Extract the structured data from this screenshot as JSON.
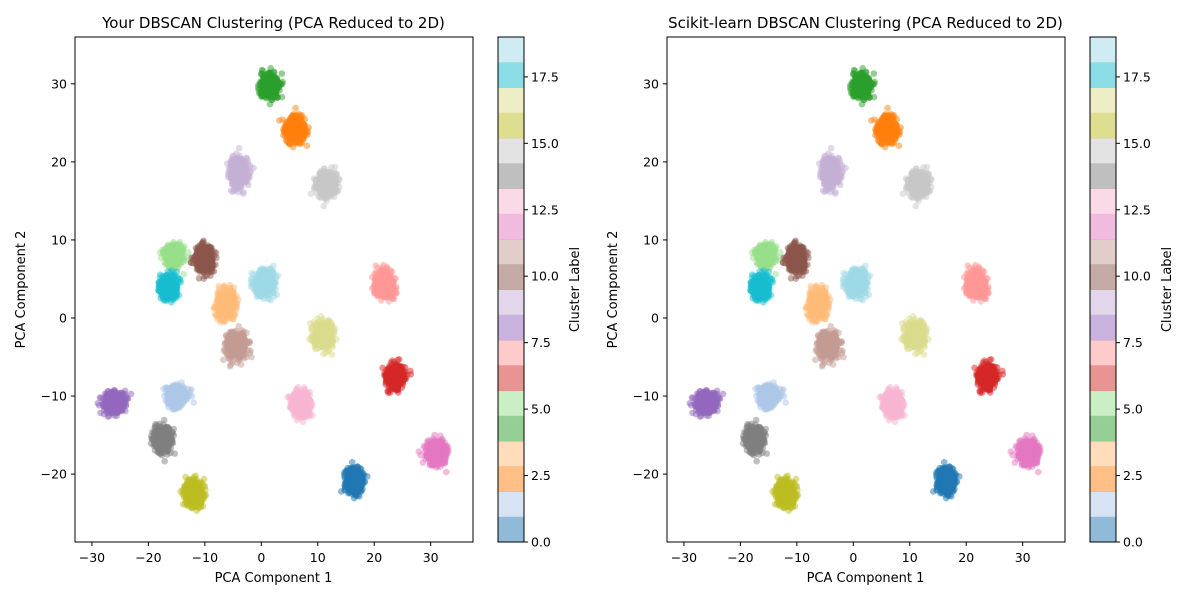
{
  "figure": {
    "width": 1200,
    "height": 600
  },
  "chart_data": [
    {
      "type": "scatter",
      "title": "Your DBSCAN Clustering (PCA Reduced to 2D)",
      "xlabel": "PCA Component 1",
      "ylabel": "PCA Component 2",
      "xlim": [
        -33,
        37.5
      ],
      "ylim": [
        -28.7,
        36
      ],
      "xticks": [
        -30,
        -20,
        -10,
        0,
        10,
        20,
        30
      ],
      "yticks": [
        -20,
        -10,
        0,
        10,
        20,
        30
      ],
      "xtick_labels": [
        "−30",
        "−20",
        "−10",
        "0",
        "10",
        "20",
        "30"
      ],
      "ytick_labels": [
        "−20",
        "−10",
        "0",
        "10",
        "20",
        "30"
      ],
      "colorbar": {
        "label": "Cluster Label",
        "range": [
          0,
          19
        ],
        "ticks": [
          0.0,
          2.5,
          5.0,
          7.5,
          10.0,
          12.5,
          15.0,
          17.5
        ],
        "tick_labels": [
          "0.0",
          "2.5",
          "5.0",
          "7.5",
          "10.0",
          "12.5",
          "15.0",
          "17.5"
        ],
        "colormap": "tab20",
        "colors": [
          "#1f77b4",
          "#aec7e8",
          "#ff7f0e",
          "#ffbb78",
          "#2ca02c",
          "#98df8a",
          "#d62728",
          "#ff9896",
          "#9467bd",
          "#c5b0d5",
          "#8c564b",
          "#c49c94",
          "#e377c2",
          "#f7b6d2",
          "#7f7f7f",
          "#c7c7c7",
          "#bcbd22",
          "#dbdb8d",
          "#17becf",
          "#9edae5"
        ]
      },
      "clusters": [
        {
          "label": 0,
          "center": [
            16.5,
            -20.8
          ],
          "spread": [
            1.3,
            1.4
          ]
        },
        {
          "label": 1,
          "center": [
            -15.0,
            -10.0
          ],
          "spread": [
            1.5,
            1.2
          ]
        },
        {
          "label": 2,
          "center": [
            6.0,
            24.2
          ],
          "spread": [
            1.5,
            1.5
          ]
        },
        {
          "label": 3,
          "center": [
            -6.2,
            1.8
          ],
          "spread": [
            1.4,
            1.6
          ]
        },
        {
          "label": 4,
          "center": [
            1.5,
            29.8
          ],
          "spread": [
            1.4,
            1.4
          ]
        },
        {
          "label": 5,
          "center": [
            -15.5,
            8.0
          ],
          "spread": [
            1.4,
            1.2
          ]
        },
        {
          "label": 6,
          "center": [
            23.7,
            -7.5
          ],
          "spread": [
            1.4,
            1.3
          ]
        },
        {
          "label": 7,
          "center": [
            21.8,
            4.3
          ],
          "spread": [
            1.5,
            1.5
          ]
        },
        {
          "label": 8,
          "center": [
            -26.0,
            -10.8
          ],
          "spread": [
            1.7,
            1.2
          ]
        },
        {
          "label": 9,
          "center": [
            -4.0,
            18.6
          ],
          "spread": [
            1.4,
            1.6
          ]
        },
        {
          "label": 10,
          "center": [
            -10.0,
            7.5
          ],
          "spread": [
            1.4,
            1.4
          ]
        },
        {
          "label": 11,
          "center": [
            -4.5,
            -3.6
          ],
          "spread": [
            1.5,
            1.4
          ]
        },
        {
          "label": 12,
          "center": [
            31.0,
            -17.2
          ],
          "spread": [
            1.5,
            1.4
          ]
        },
        {
          "label": 13,
          "center": [
            7.0,
            -11.0
          ],
          "spread": [
            1.4,
            1.4
          ]
        },
        {
          "label": 14,
          "center": [
            -17.5,
            -15.5
          ],
          "spread": [
            1.4,
            1.4
          ]
        },
        {
          "label": 15,
          "center": [
            11.5,
            17.2
          ],
          "spread": [
            1.5,
            1.5
          ]
        },
        {
          "label": 16,
          "center": [
            -12.0,
            -22.5
          ],
          "spread": [
            1.4,
            1.4
          ]
        },
        {
          "label": 17,
          "center": [
            11.0,
            -2.2
          ],
          "spread": [
            1.5,
            1.5
          ]
        },
        {
          "label": 18,
          "center": [
            -16.5,
            4.0
          ],
          "spread": [
            1.4,
            1.2
          ]
        },
        {
          "label": 19,
          "center": [
            0.5,
            4.5
          ],
          "spread": [
            1.5,
            1.5
          ]
        }
      ]
    },
    {
      "type": "scatter",
      "title": "Scikit-learn DBSCAN Clustering (PCA Reduced to 2D)",
      "xlabel": "PCA Component 1",
      "ylabel": "PCA Component 2",
      "xlim": [
        -33,
        37.5
      ],
      "ylim": [
        -28.7,
        36
      ],
      "xticks": [
        -30,
        -20,
        -10,
        0,
        10,
        20,
        30
      ],
      "yticks": [
        -20,
        -10,
        0,
        10,
        20,
        30
      ],
      "xtick_labels": [
        "−30",
        "−20",
        "−10",
        "0",
        "10",
        "20",
        "30"
      ],
      "ytick_labels": [
        "−20",
        "−10",
        "0",
        "10",
        "20",
        "30"
      ],
      "colorbar": {
        "label": "Cluster Label",
        "range": [
          0,
          19
        ],
        "ticks": [
          0.0,
          2.5,
          5.0,
          7.5,
          10.0,
          12.5,
          15.0,
          17.5
        ],
        "tick_labels": [
          "0.0",
          "2.5",
          "5.0",
          "7.5",
          "10.0",
          "12.5",
          "15.0",
          "17.5"
        ],
        "colormap": "tab20",
        "colors": [
          "#1f77b4",
          "#aec7e8",
          "#ff7f0e",
          "#ffbb78",
          "#2ca02c",
          "#98df8a",
          "#d62728",
          "#ff9896",
          "#9467bd",
          "#c5b0d5",
          "#8c564b",
          "#c49c94",
          "#e377c2",
          "#f7b6d2",
          "#7f7f7f",
          "#c7c7c7",
          "#bcbd22",
          "#dbdb8d",
          "#17becf",
          "#9edae5"
        ]
      },
      "clusters": [
        {
          "label": 0,
          "center": [
            16.5,
            -20.8
          ],
          "spread": [
            1.3,
            1.4
          ]
        },
        {
          "label": 1,
          "center": [
            -15.0,
            -10.0
          ],
          "spread": [
            1.5,
            1.2
          ]
        },
        {
          "label": 2,
          "center": [
            6.0,
            24.2
          ],
          "spread": [
            1.5,
            1.5
          ]
        },
        {
          "label": 3,
          "center": [
            -6.2,
            1.8
          ],
          "spread": [
            1.4,
            1.6
          ]
        },
        {
          "label": 4,
          "center": [
            1.5,
            29.8
          ],
          "spread": [
            1.4,
            1.4
          ]
        },
        {
          "label": 5,
          "center": [
            -15.5,
            8.0
          ],
          "spread": [
            1.4,
            1.2
          ]
        },
        {
          "label": 6,
          "center": [
            23.7,
            -7.5
          ],
          "spread": [
            1.4,
            1.3
          ]
        },
        {
          "label": 7,
          "center": [
            21.8,
            4.3
          ],
          "spread": [
            1.5,
            1.5
          ]
        },
        {
          "label": 8,
          "center": [
            -26.0,
            -10.8
          ],
          "spread": [
            1.7,
            1.2
          ]
        },
        {
          "label": 9,
          "center": [
            -4.0,
            18.6
          ],
          "spread": [
            1.4,
            1.6
          ]
        },
        {
          "label": 10,
          "center": [
            -10.0,
            7.5
          ],
          "spread": [
            1.4,
            1.4
          ]
        },
        {
          "label": 11,
          "center": [
            -4.5,
            -3.6
          ],
          "spread": [
            1.5,
            1.4
          ]
        },
        {
          "label": 12,
          "center": [
            31.0,
            -17.2
          ],
          "spread": [
            1.5,
            1.4
          ]
        },
        {
          "label": 13,
          "center": [
            7.0,
            -11.0
          ],
          "spread": [
            1.4,
            1.4
          ]
        },
        {
          "label": 14,
          "center": [
            -17.5,
            -15.5
          ],
          "spread": [
            1.4,
            1.4
          ]
        },
        {
          "label": 15,
          "center": [
            11.5,
            17.2
          ],
          "spread": [
            1.5,
            1.5
          ]
        },
        {
          "label": 16,
          "center": [
            -12.0,
            -22.5
          ],
          "spread": [
            1.4,
            1.4
          ]
        },
        {
          "label": 17,
          "center": [
            11.0,
            -2.2
          ],
          "spread": [
            1.5,
            1.5
          ]
        },
        {
          "label": 18,
          "center": [
            -16.5,
            4.0
          ],
          "spread": [
            1.4,
            1.2
          ]
        },
        {
          "label": 19,
          "center": [
            0.5,
            4.5
          ],
          "spread": [
            1.5,
            1.5
          ]
        }
      ]
    }
  ]
}
